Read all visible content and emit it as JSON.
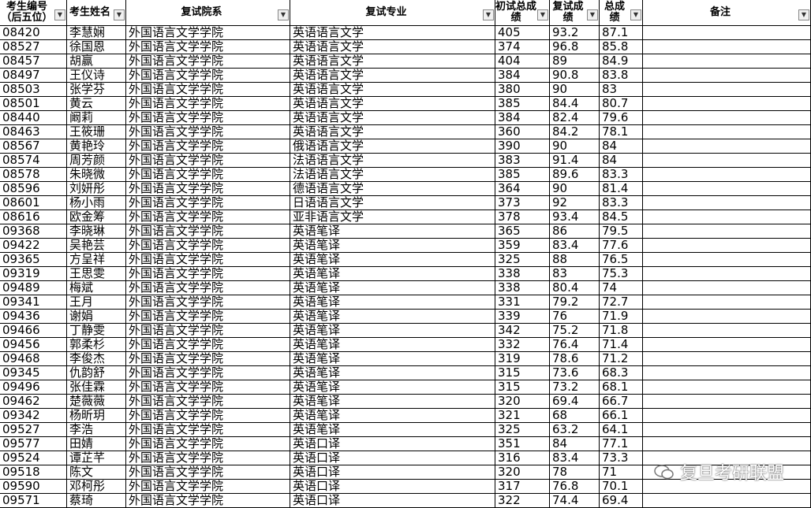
{
  "table": {
    "headers": [
      "考生编号（后五位）",
      "考生姓名",
      "复试院系",
      "复试专业",
      "初试总成绩",
      "复试成绩",
      "总成绩",
      "备注"
    ],
    "rows": [
      [
        "08420",
        "李慧娴",
        "外国语言文学学院",
        "英语语言文学",
        405,
        93.2,
        87.1
      ],
      [
        "08527",
        "徐国恩",
        "外国语言文学学院",
        "英语语言文学",
        374,
        96.8,
        85.8
      ],
      [
        "08457",
        "胡赢",
        "外国语言文学学院",
        "英语语言文学",
        404,
        89,
        84.9
      ],
      [
        "08497",
        "王仪诗",
        "外国语言文学学院",
        "英语语言文学",
        384,
        90.8,
        83.8
      ],
      [
        "08503",
        "张学芬",
        "外国语言文学学院",
        "英语语言文学",
        380,
        90,
        83
      ],
      [
        "08501",
        "黄云",
        "外国语言文学学院",
        "英语语言文学",
        385,
        84.4,
        80.7
      ],
      [
        "08440",
        "阚莉",
        "外国语言文学学院",
        "英语语言文学",
        384,
        82.4,
        79.6
      ],
      [
        "08463",
        "王筱珊",
        "外国语言文学学院",
        "英语语言文学",
        360,
        84.2,
        78.1
      ],
      [
        "08567",
        "黄艳玲",
        "外国语言文学学院",
        "俄语语言文学",
        390,
        90,
        84
      ],
      [
        "08574",
        "周芳颜",
        "外国语言文学学院",
        "法语语言文学",
        383,
        91.4,
        84
      ],
      [
        "08578",
        "朱晓微",
        "外国语言文学学院",
        "法语语言文学",
        385,
        89.6,
        83.3
      ],
      [
        "08596",
        "刘妍彤",
        "外国语言文学学院",
        "德语语言文学",
        364,
        90,
        81.4
      ],
      [
        "08601",
        "杨小雨",
        "外国语言文学学院",
        "日语语言文学",
        373,
        92,
        83.3
      ],
      [
        "08616",
        "欧金筹",
        "外国语言文学学院",
        "亚非语言文学",
        378,
        93.4,
        84.5
      ],
      [
        "09368",
        "李晓琳",
        "外国语言文学学院",
        "英语笔译",
        365,
        86,
        79.5
      ],
      [
        "09422",
        "吴艳芸",
        "外国语言文学学院",
        "英语笔译",
        359,
        83.4,
        77.6
      ],
      [
        "09365",
        "方呈祥",
        "外国语言文学学院",
        "英语笔译",
        325,
        88,
        76.5
      ],
      [
        "09319",
        "王思雯",
        "外国语言文学学院",
        "英语笔译",
        338,
        83,
        75.3
      ],
      [
        "09489",
        "梅斌",
        "外国语言文学学院",
        "英语笔译",
        338,
        80.4,
        74
      ],
      [
        "09341",
        "王月",
        "外国语言文学学院",
        "英语笔译",
        331,
        79.2,
        72.7
      ],
      [
        "09436",
        "谢娟",
        "外国语言文学学院",
        "英语笔译",
        339,
        76,
        71.9
      ],
      [
        "09466",
        "丁静雯",
        "外国语言文学学院",
        "英语笔译",
        342,
        75.2,
        71.8
      ],
      [
        "09456",
        "郭柔杉",
        "外国语言文学学院",
        "英语笔译",
        332,
        76.4,
        71.4
      ],
      [
        "09468",
        "李俊杰",
        "外国语言文学学院",
        "英语笔译",
        319,
        78.6,
        71.2
      ],
      [
        "09345",
        "仇韵舒",
        "外国语言文学学院",
        "英语笔译",
        315,
        73.6,
        68.3
      ],
      [
        "09496",
        "张佳霖",
        "外国语言文学学院",
        "英语笔译",
        315,
        73.2,
        68.1
      ],
      [
        "09462",
        "楚薇薇",
        "外国语言文学学院",
        "英语笔译",
        320,
        69.4,
        66.7
      ],
      [
        "09342",
        "杨昕玥",
        "外国语言文学学院",
        "英语笔译",
        321,
        68,
        66.1
      ],
      [
        "09527",
        "李浩",
        "外国语言文学学院",
        "英语笔译",
        325,
        63.2,
        64.1
      ],
      [
        "09577",
        "田婧",
        "外国语言文学学院",
        "英语口译",
        351,
        84,
        77.1
      ],
      [
        "09524",
        "谭芷芊",
        "外国语言文学学院",
        "英语口译",
        316,
        83.4,
        73.3
      ],
      [
        "09518",
        "陈文",
        "外国语言文学学院",
        "英语口译",
        320,
        78,
        71
      ],
      [
        "09590",
        "邓柯彤",
        "外国语言文学学院",
        "英语口译",
        317,
        76.8,
        70.1
      ],
      [
        "09571",
        "蔡琦",
        "外国语言文学学院",
        "英语口译",
        322,
        74.4,
        69.4
      ]
    ]
  },
  "watermark": "复旦考研联盟"
}
